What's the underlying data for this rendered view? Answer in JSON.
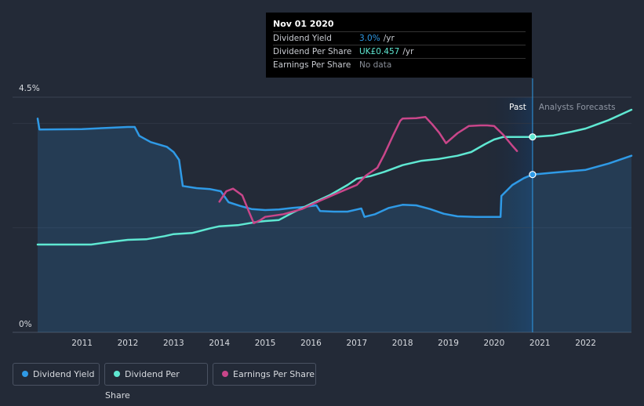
{
  "tooltip": {
    "date": "Nov 01 2020",
    "rows": [
      {
        "label": "Dividend Yield",
        "value": "3.0%",
        "unit": "/yr",
        "color": "#2f9ae6"
      },
      {
        "label": "Dividend Per Share",
        "value": "UK£0.457",
        "unit": "/yr",
        "color": "#5fe8d2"
      },
      {
        "label": "Earnings Per Share",
        "value": "No data",
        "unit": "",
        "color": "#8a8f99"
      }
    ]
  },
  "legend": [
    {
      "label": "Dividend Yield",
      "color": "#2f9ae6"
    },
    {
      "label": "Dividend Per Share",
      "color": "#5fe8d2"
    },
    {
      "label": "Earnings Per Share",
      "color": "#c9468a"
    }
  ],
  "chart_data": {
    "type": "line",
    "x_ticks": [
      "2011",
      "2012",
      "2013",
      "2014",
      "2015",
      "2016",
      "2017",
      "2018",
      "2019",
      "2020",
      "2021",
      "2022"
    ],
    "y_ticks": [
      "0%",
      "4.5%"
    ],
    "ylim": [
      0,
      4.5
    ],
    "xlim": [
      2010.0,
      2023.0
    ],
    "past_label": "Past",
    "forecast_label": "Analysts Forecasts",
    "past_forecast_boundary": 2020.84,
    "series": [
      {
        "name": "Dividend Yield",
        "color": "#2f9ae6",
        "area": true,
        "points": [
          [
            2010.03,
            4.09
          ],
          [
            2010.07,
            3.88
          ],
          [
            2011.0,
            3.89
          ],
          [
            2012.0,
            3.93
          ],
          [
            2012.15,
            3.93
          ],
          [
            2012.25,
            3.76
          ],
          [
            2012.5,
            3.64
          ],
          [
            2012.85,
            3.55
          ],
          [
            2013.0,
            3.45
          ],
          [
            2013.12,
            3.3
          ],
          [
            2013.2,
            2.8
          ],
          [
            2013.5,
            2.76
          ],
          [
            2013.8,
            2.74
          ],
          [
            2014.03,
            2.7
          ],
          [
            2014.2,
            2.49
          ],
          [
            2014.45,
            2.42
          ],
          [
            2014.7,
            2.36
          ],
          [
            2015.0,
            2.34
          ],
          [
            2015.3,
            2.35
          ],
          [
            2015.6,
            2.38
          ],
          [
            2015.85,
            2.4
          ],
          [
            2016.12,
            2.43
          ],
          [
            2016.2,
            2.32
          ],
          [
            2016.5,
            2.31
          ],
          [
            2016.8,
            2.31
          ],
          [
            2017.0,
            2.35
          ],
          [
            2017.1,
            2.37
          ],
          [
            2017.17,
            2.21
          ],
          [
            2017.4,
            2.26
          ],
          [
            2017.7,
            2.38
          ],
          [
            2018.0,
            2.44
          ],
          [
            2018.3,
            2.43
          ],
          [
            2018.6,
            2.36
          ],
          [
            2018.9,
            2.27
          ],
          [
            2019.2,
            2.22
          ],
          [
            2019.6,
            2.21
          ],
          [
            2020.0,
            2.21
          ],
          [
            2020.14,
            2.21
          ],
          [
            2020.16,
            2.61
          ],
          [
            2020.4,
            2.82
          ],
          [
            2020.65,
            2.95
          ],
          [
            2020.84,
            3.02
          ],
          [
            2021.2,
            3.05
          ],
          [
            2022.0,
            3.11
          ],
          [
            2022.5,
            3.23
          ],
          [
            2023.0,
            3.38
          ]
        ]
      },
      {
        "name": "Dividend Per Share",
        "color": "#5fe8d2",
        "points": [
          [
            2010.03,
            1.68
          ],
          [
            2011.2,
            1.68
          ],
          [
            2011.6,
            1.73
          ],
          [
            2012.0,
            1.77
          ],
          [
            2012.4,
            1.78
          ],
          [
            2012.8,
            1.84
          ],
          [
            2013.0,
            1.88
          ],
          [
            2013.4,
            1.9
          ],
          [
            2013.8,
            1.99
          ],
          [
            2014.0,
            2.03
          ],
          [
            2014.4,
            2.05
          ],
          [
            2014.8,
            2.11
          ],
          [
            2015.0,
            2.13
          ],
          [
            2015.3,
            2.15
          ],
          [
            2015.6,
            2.29
          ],
          [
            2016.0,
            2.46
          ],
          [
            2016.4,
            2.62
          ],
          [
            2016.8,
            2.82
          ],
          [
            2017.0,
            2.94
          ],
          [
            2017.3,
            2.99
          ],
          [
            2017.6,
            3.07
          ],
          [
            2018.0,
            3.2
          ],
          [
            2018.4,
            3.28
          ],
          [
            2018.8,
            3.32
          ],
          [
            2019.2,
            3.38
          ],
          [
            2019.5,
            3.45
          ],
          [
            2019.8,
            3.6
          ],
          [
            2020.0,
            3.69
          ],
          [
            2020.2,
            3.74
          ],
          [
            2020.84,
            3.74
          ],
          [
            2021.3,
            3.77
          ],
          [
            2021.7,
            3.84
          ],
          [
            2022.0,
            3.9
          ],
          [
            2022.5,
            4.06
          ],
          [
            2023.0,
            4.26
          ]
        ]
      },
      {
        "name": "Earnings Per Share",
        "color": "#c9468a",
        "points": [
          [
            2014.0,
            2.5
          ],
          [
            2014.15,
            2.7
          ],
          [
            2014.3,
            2.75
          ],
          [
            2014.5,
            2.62
          ],
          [
            2014.65,
            2.3
          ],
          [
            2014.75,
            2.09
          ],
          [
            2014.9,
            2.15
          ],
          [
            2015.0,
            2.21
          ],
          [
            2015.4,
            2.26
          ],
          [
            2015.8,
            2.36
          ],
          [
            2016.2,
            2.52
          ],
          [
            2016.7,
            2.71
          ],
          [
            2017.0,
            2.82
          ],
          [
            2017.2,
            3.0
          ],
          [
            2017.45,
            3.15
          ],
          [
            2017.6,
            3.4
          ],
          [
            2017.8,
            3.78
          ],
          [
            2017.95,
            4.05
          ],
          [
            2018.0,
            4.09
          ],
          [
            2018.3,
            4.1
          ],
          [
            2018.5,
            4.12
          ],
          [
            2018.65,
            3.98
          ],
          [
            2018.8,
            3.82
          ],
          [
            2018.95,
            3.62
          ],
          [
            2019.2,
            3.81
          ],
          [
            2019.45,
            3.95
          ],
          [
            2019.7,
            3.96
          ],
          [
            2019.85,
            3.96
          ],
          [
            2020.0,
            3.95
          ],
          [
            2020.2,
            3.78
          ],
          [
            2020.4,
            3.57
          ],
          [
            2020.5,
            3.47
          ]
        ]
      }
    ]
  }
}
